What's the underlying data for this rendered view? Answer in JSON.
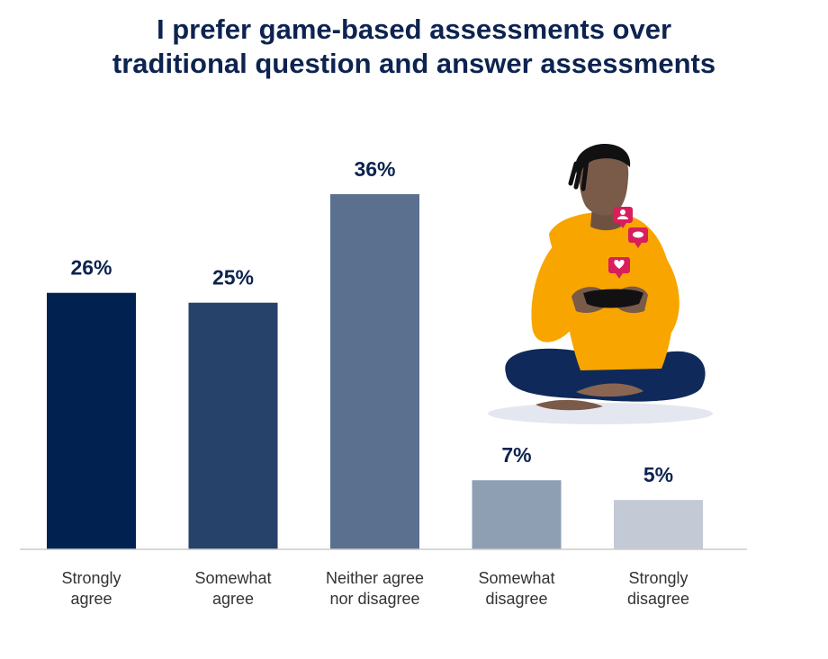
{
  "chart_data": {
    "type": "bar",
    "title": "I prefer game-based assessments over traditional question and answer assessments",
    "title_lines": [
      "I prefer game-based assessments over",
      "traditional question and answer assessments"
    ],
    "categories": [
      "Strongly agree",
      "Somewhat agree",
      "Neither agree nor disagree",
      "Somewhat disagree",
      "Strongly disagree"
    ],
    "category_lines": [
      [
        "Strongly",
        "agree"
      ],
      [
        "Somewhat",
        "agree"
      ],
      [
        "Neither agree",
        "nor disagree"
      ],
      [
        "Somewhat",
        "disagree"
      ],
      [
        "Strongly",
        "disagree"
      ]
    ],
    "values": [
      26,
      25,
      36,
      7,
      5
    ],
    "value_labels": [
      "26%",
      "25%",
      "36%",
      "7%",
      "5%"
    ],
    "unit": "%",
    "ylim": [
      0,
      36
    ],
    "bar_colors": [
      "#012251",
      "#26426a",
      "#5a708e",
      "#8e9fb4",
      "#c3c9d5"
    ],
    "grid": false,
    "legend": "none"
  },
  "colors": {
    "title": "#0d2350",
    "label": "#333333",
    "value_label": "#0d2350",
    "axis": "#cccccc"
  },
  "illustration": {
    "icon": "person-playing-mobile-game-illustration"
  }
}
